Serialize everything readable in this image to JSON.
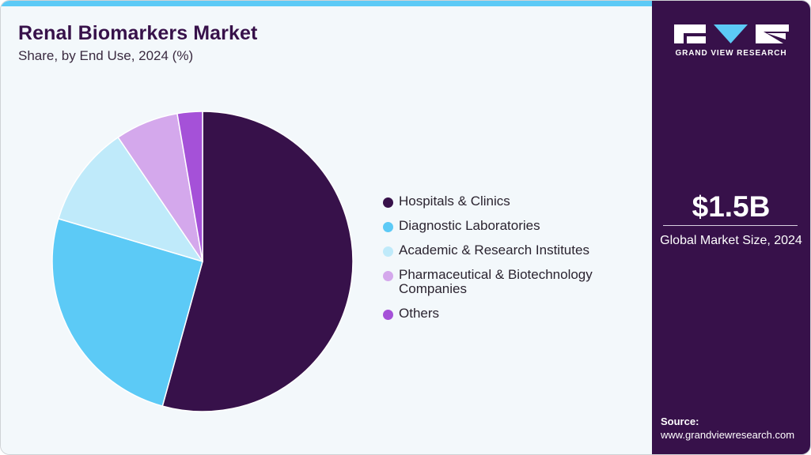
{
  "header": {
    "title": "Renal Biomarkers Market",
    "subtitle": "Share, by End Use, 2024 (%)"
  },
  "legend": {
    "items": [
      {
        "label": "Hospitals & Clinics",
        "color": "#37114a"
      },
      {
        "label": "Diagnostic Laboratories",
        "color": "#5ccaf6"
      },
      {
        "label": "Academic & Research Institutes",
        "color": "#bfeafa"
      },
      {
        "label": "Pharmaceutical & Biotechnology Companies",
        "color": "#d4a8ec"
      },
      {
        "label": "Others",
        "color": "#a551d8"
      }
    ]
  },
  "sidebar": {
    "brand": "GRAND VIEW RESEARCH",
    "market_size_value": "$1.5B",
    "market_size_label": "Global Market Size, 2024",
    "source_heading": "Source:",
    "source_url": "www.grandviewresearch.com"
  },
  "colors": {
    "accent_bar": "#5ccaf6",
    "sidebar_bg": "#37114a",
    "panel_bg": "#f3f8fb"
  },
  "chart_data": {
    "type": "pie",
    "title": "Renal Biomarkers Market",
    "subtitle": "Share, by End Use, 2024 (%)",
    "categories": [
      "Hospitals & Clinics",
      "Diagnostic Laboratories",
      "Academic & Research Institutes",
      "Pharmaceutical & Biotechnology Companies",
      "Others"
    ],
    "values": [
      54.3,
      25.3,
      10.9,
      6.8,
      2.7
    ],
    "colors": [
      "#37114a",
      "#5ccaf6",
      "#bfeafa",
      "#d4a8ec",
      "#a551d8"
    ],
    "start_angle": "12 o'clock",
    "direction": "clockwise",
    "legend_position": "right",
    "data_labels": false
  }
}
